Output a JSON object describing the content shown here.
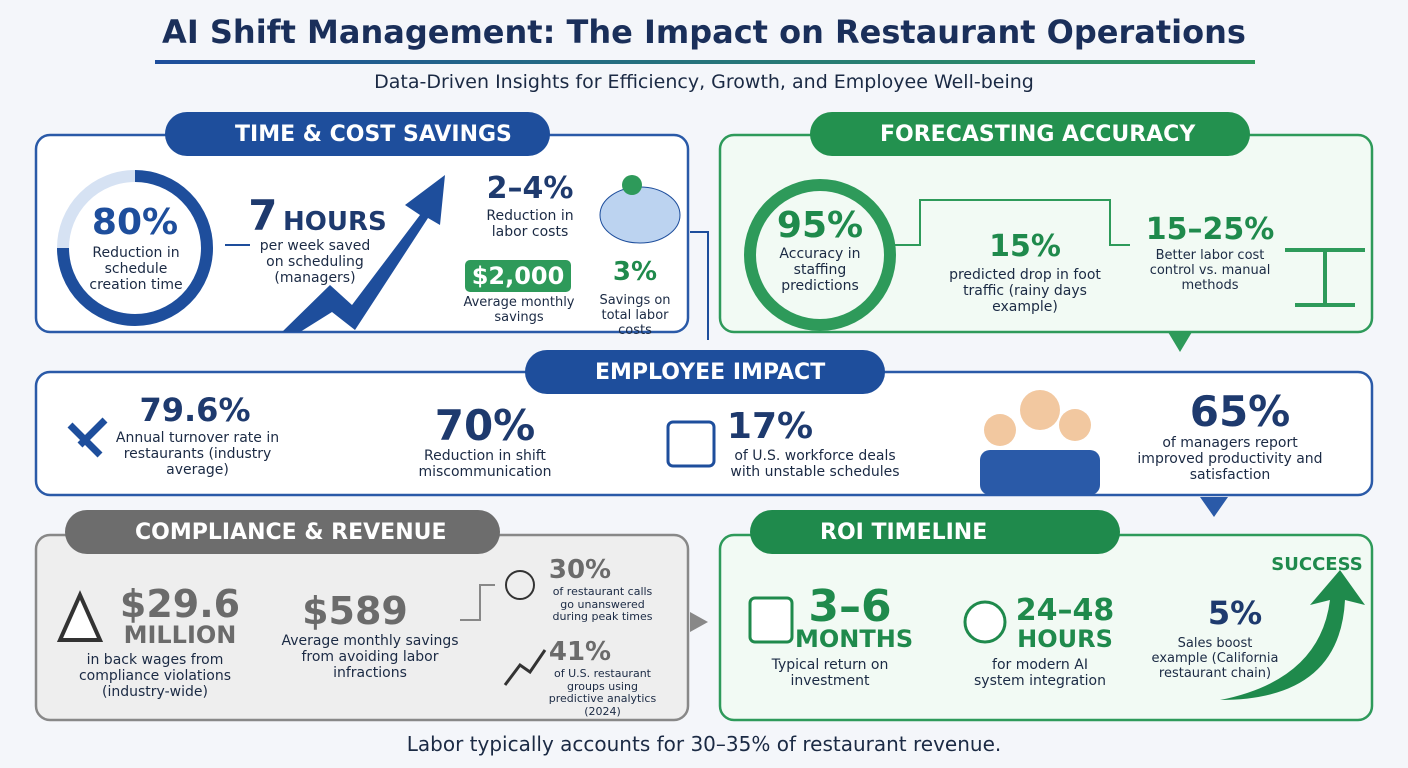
{
  "header": {
    "title": "AI Shift Management: The Impact on Restaurant Operations",
    "subtitle": "Data-Driven Insights for Efficiency, Growth, and Employee Well-being"
  },
  "time_cost": {
    "heading": "TIME & COST SAVINGS",
    "stats": [
      {
        "value": "80%",
        "label": "Reduction in schedule creation time"
      },
      {
        "value": "7",
        "unit": "HOURS",
        "label": "per week saved on scheduling (managers)"
      },
      {
        "value": "2–4%",
        "label": "Reduction in labor costs"
      },
      {
        "value": "$2,000",
        "label": "Average monthly savings"
      },
      {
        "value": "3%",
        "label": "Savings on total labor costs"
      }
    ]
  },
  "forecasting": {
    "heading": "FORECASTING ACCURACY",
    "stats": [
      {
        "value": "95%",
        "label": "Accuracy in staffing predictions"
      },
      {
        "value": "15%",
        "label": "predicted drop in foot traffic (rainy days example)"
      },
      {
        "value": "15–25%",
        "label": "Better labor cost control vs. manual methods"
      }
    ]
  },
  "employee": {
    "heading": "EMPLOYEE IMPACT",
    "stats": [
      {
        "value": "79.6%",
        "label": "Annual turnover rate in restaurants (industry average)"
      },
      {
        "value": "70%",
        "label": "Reduction in shift miscommunication"
      },
      {
        "value": "17%",
        "label": "of U.S. workforce deals with unstable schedules"
      },
      {
        "value": "65%",
        "label": "of managers report improved productivity and satisfaction"
      }
    ]
  },
  "compliance": {
    "heading": "COMPLIANCE & REVENUE",
    "stats": [
      {
        "value": "$29.6",
        "unit": "MILLION",
        "label": "in back wages from compliance violations (industry-wide)"
      },
      {
        "value": "$589",
        "label": "Average monthly savings from avoiding labor infractions"
      },
      {
        "value": "30%",
        "label": "of restaurant calls go unanswered during peak times"
      },
      {
        "value": "41%",
        "label": "of U.S. restaurant groups using predictive analytics (2024)"
      }
    ]
  },
  "roi": {
    "heading": "ROI TIMELINE",
    "success": "SUCCESS",
    "stats": [
      {
        "value": "3–6",
        "unit": "MONTHS",
        "label": "Typical return on investment"
      },
      {
        "value": "24–48",
        "unit": "HOURS",
        "label": "for modern AI system integration"
      },
      {
        "value": "5%",
        "label": "Sales boost example (California restaurant chain)"
      }
    ]
  },
  "footer": "Labor typically accounts for 30–35% of restaurant revenue."
}
